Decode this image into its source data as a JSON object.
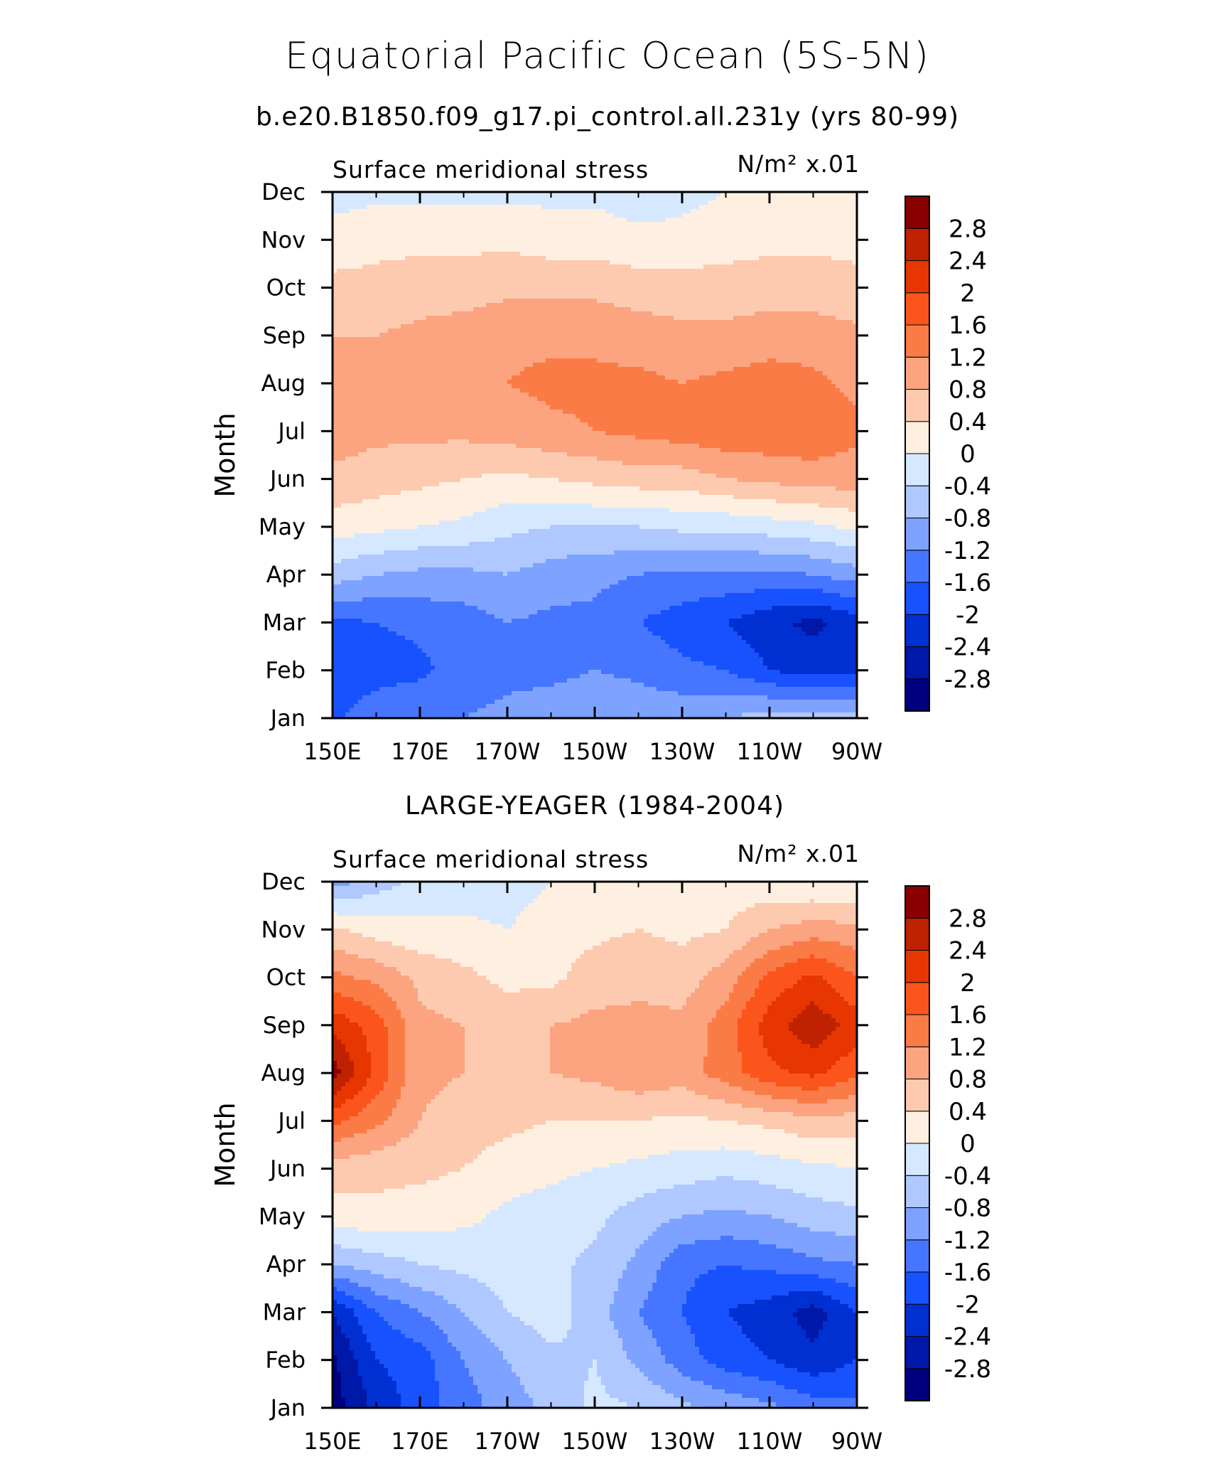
{
  "figure": {
    "title": "Equatorial Pacific Ocean (5S-5N)",
    "subtitle": "b.e20.B1850.f09_g17.pi_control.all.231y (yrs 80-99)"
  },
  "colors": {
    "levels": [
      "#00007f",
      "#0018a8",
      "#0030d1",
      "#1852ff",
      "#4676ff",
      "#7ea2ff",
      "#afc8ff",
      "#d6e8ff",
      "#ffefe0",
      "#fdcab0",
      "#fba47f",
      "#fb7b47",
      "#fc551c",
      "#e73600",
      "#bf2200",
      "#8a0000"
    ],
    "axis": "#000000"
  },
  "chart_data": [
    {
      "type": "heatmap",
      "panel_title": "",
      "left_label": "Surface meridional stress",
      "right_label": "N/m² x.01",
      "xlabel": "",
      "ylabel": "Month",
      "x_ticks": [
        150,
        170,
        190,
        210,
        230,
        250,
        270
      ],
      "x_tick_labels": [
        "150E",
        "170E",
        "170W",
        "150W",
        "130W",
        "110W",
        "90W"
      ],
      "y_ticks": [
        1,
        2,
        3,
        4,
        5,
        6,
        7,
        8,
        9,
        10,
        11,
        12
      ],
      "y_tick_labels": [
        "Jan",
        "Feb",
        "Mar",
        "Apr",
        "May",
        "Jun",
        "Jul",
        "Aug",
        "Sep",
        "Oct",
        "Nov",
        "Dec"
      ],
      "xlim": [
        150,
        270
      ],
      "ylim": [
        1,
        12
      ],
      "levels": [
        -2.8,
        -2.4,
        -2,
        -1.6,
        -1.2,
        -0.8,
        -0.4,
        0,
        0.4,
        0.8,
        1.2,
        1.6,
        2,
        2.4,
        2.8
      ],
      "colorbar_labels": [
        "2.8",
        "2.4",
        "2",
        "1.6",
        "1.2",
        "0.8",
        "0.4",
        "0",
        "-0.4",
        "-0.8",
        "-1.2",
        "-1.6",
        "-2",
        "-2.4",
        "-2.8"
      ],
      "x": [
        150,
        160,
        170,
        180,
        190,
        200,
        210,
        220,
        230,
        240,
        250,
        260,
        270
      ],
      "y": [
        1,
        2,
        3,
        4,
        5,
        6,
        7,
        8,
        9,
        10,
        11,
        12
      ],
      "z": [
        [
          -1.7,
          -1.3,
          -1.2,
          -1.2,
          -1.1,
          -1.0,
          -0.9,
          -0.9,
          -0.9,
          -0.8,
          -0.6,
          -0.6,
          -0.6
        ],
        [
          -1.9,
          -1.8,
          -1.7,
          -1.4,
          -1.3,
          -1.3,
          -1.2,
          -1.3,
          -1.5,
          -1.6,
          -2.0,
          -2.2,
          -2.1
        ],
        [
          -1.7,
          -1.6,
          -1.5,
          -1.4,
          -1.2,
          -1.3,
          -1.3,
          -1.6,
          -1.8,
          -2.0,
          -2.3,
          -2.5,
          -2.2
        ],
        [
          -0.6,
          -0.8,
          -0.9,
          -0.9,
          -0.8,
          -1.0,
          -1.1,
          -1.2,
          -1.3,
          -1.3,
          -1.3,
          -1.2,
          -1.0
        ],
        [
          0.2,
          0.1,
          0.0,
          -0.1,
          -0.3,
          -0.4,
          -0.4,
          -0.4,
          -0.3,
          -0.3,
          -0.2,
          -0.1,
          0.1
        ],
        [
          0.7,
          0.6,
          0.5,
          0.4,
          0.3,
          0.4,
          0.5,
          0.6,
          0.6,
          0.8,
          0.9,
          1.0,
          1.0
        ],
        [
          1.0,
          0.9,
          0.9,
          0.9,
          1.0,
          1.1,
          1.2,
          1.3,
          1.4,
          1.5,
          1.5,
          1.5,
          1.3
        ],
        [
          1.0,
          0.9,
          1.0,
          1.1,
          1.2,
          1.3,
          1.3,
          1.3,
          1.2,
          1.3,
          1.4,
          1.3,
          1.1
        ],
        [
          0.8,
          0.8,
          0.9,
          1.0,
          1.1,
          1.1,
          1.1,
          1.0,
          0.9,
          0.9,
          1.0,
          1.0,
          0.9
        ],
        [
          0.5,
          0.5,
          0.6,
          0.6,
          0.7,
          0.7,
          0.7,
          0.6,
          0.6,
          0.6,
          0.6,
          0.6,
          0.5
        ],
        [
          0.2,
          0.3,
          0.3,
          0.3,
          0.3,
          0.2,
          0.2,
          0.1,
          0.1,
          0.2,
          0.3,
          0.3,
          0.3
        ],
        [
          -0.2,
          -0.1,
          -0.1,
          -0.1,
          -0.1,
          -0.1,
          -0.1,
          -0.2,
          -0.1,
          0.0,
          0.1,
          0.1,
          0.1
        ]
      ]
    },
    {
      "type": "heatmap",
      "panel_title": "LARGE-YEAGER (1984-2004)",
      "left_label": "Surface meridional stress",
      "right_label": "N/m² x.01",
      "xlabel": "",
      "ylabel": "Month",
      "x_ticks": [
        150,
        170,
        190,
        210,
        230,
        250,
        270
      ],
      "x_tick_labels": [
        "150E",
        "170E",
        "170W",
        "150W",
        "130W",
        "110W",
        "90W"
      ],
      "y_ticks": [
        1,
        2,
        3,
        4,
        5,
        6,
        7,
        8,
        9,
        10,
        11,
        12
      ],
      "y_tick_labels": [
        "Jan",
        "Feb",
        "Mar",
        "Apr",
        "May",
        "Jun",
        "Jul",
        "Aug",
        "Sep",
        "Oct",
        "Nov",
        "Dec"
      ],
      "xlim": [
        150,
        270
      ],
      "ylim": [
        1,
        12
      ],
      "levels": [
        -2.8,
        -2.4,
        -2,
        -1.6,
        -1.2,
        -0.8,
        -0.4,
        0,
        0.4,
        0.8,
        1.2,
        1.6,
        2,
        2.4,
        2.8
      ],
      "colorbar_labels": [
        "2.8",
        "2.4",
        "2",
        "1.6",
        "1.2",
        "0.8",
        "0.4",
        "0",
        "-0.4",
        "-0.8",
        "-1.2",
        "-1.6",
        "-2",
        "-2.4",
        "-2.8"
      ],
      "x": [
        150,
        160,
        170,
        180,
        190,
        200,
        210,
        220,
        230,
        240,
        250,
        260,
        270
      ],
      "y": [
        1,
        2,
        3,
        4,
        5,
        6,
        7,
        8,
        9,
        10,
        11,
        12
      ],
      "z": [
        [
          -3.0,
          -2.3,
          -1.8,
          -1.4,
          -1.0,
          -0.7,
          -0.3,
          -0.4,
          -0.7,
          -0.9,
          -1.1,
          -1.4,
          -1.5
        ],
        [
          -2.9,
          -2.0,
          -1.8,
          -1.2,
          -0.8,
          -0.5,
          -0.4,
          -0.9,
          -1.4,
          -1.8,
          -2.0,
          -2.3,
          -2.0
        ],
        [
          -2.4,
          -1.6,
          -1.2,
          -0.8,
          -0.4,
          -0.2,
          -0.6,
          -1.2,
          -1.6,
          -2.0,
          -2.2,
          -2.6,
          -2.0
        ],
        [
          -0.8,
          -0.6,
          -0.4,
          -0.3,
          -0.2,
          -0.3,
          -0.5,
          -0.9,
          -1.5,
          -1.6,
          -1.5,
          -1.3,
          -1.2
        ],
        [
          0.2,
          0.3,
          0.2,
          0.1,
          -0.1,
          -0.2,
          -0.3,
          -0.6,
          -0.8,
          -0.9,
          -0.8,
          -0.6,
          -0.5
        ],
        [
          0.6,
          0.5,
          0.5,
          0.4,
          0.2,
          0.1,
          0.0,
          -0.1,
          -0.2,
          -0.3,
          -0.2,
          -0.1,
          0.0
        ],
        [
          1.7,
          1.3,
          0.8,
          0.6,
          0.5,
          0.4,
          0.4,
          0.4,
          0.3,
          0.4,
          0.5,
          0.7,
          0.6
        ],
        [
          3.0,
          1.9,
          0.9,
          0.8,
          0.6,
          0.8,
          0.9,
          1.1,
          1.0,
          1.4,
          1.9,
          2.1,
          1.7
        ],
        [
          2.3,
          1.8,
          0.9,
          0.8,
          0.6,
          0.8,
          0.9,
          0.9,
          0.9,
          1.4,
          2.2,
          2.7,
          2.2
        ],
        [
          1.3,
          1.1,
          0.7,
          0.5,
          0.3,
          0.3,
          0.6,
          0.7,
          0.6,
          1.0,
          1.7,
          2.1,
          1.6
        ],
        [
          0.5,
          0.2,
          0.1,
          0.1,
          0.0,
          0.2,
          0.3,
          0.4,
          0.3,
          0.4,
          0.8,
          1.0,
          0.9
        ],
        [
          -1.0,
          -0.6,
          -0.3,
          -0.2,
          -0.2,
          0.0,
          0.1,
          0.2,
          0.2,
          0.2,
          0.1,
          0.0,
          0.0
        ]
      ]
    }
  ]
}
